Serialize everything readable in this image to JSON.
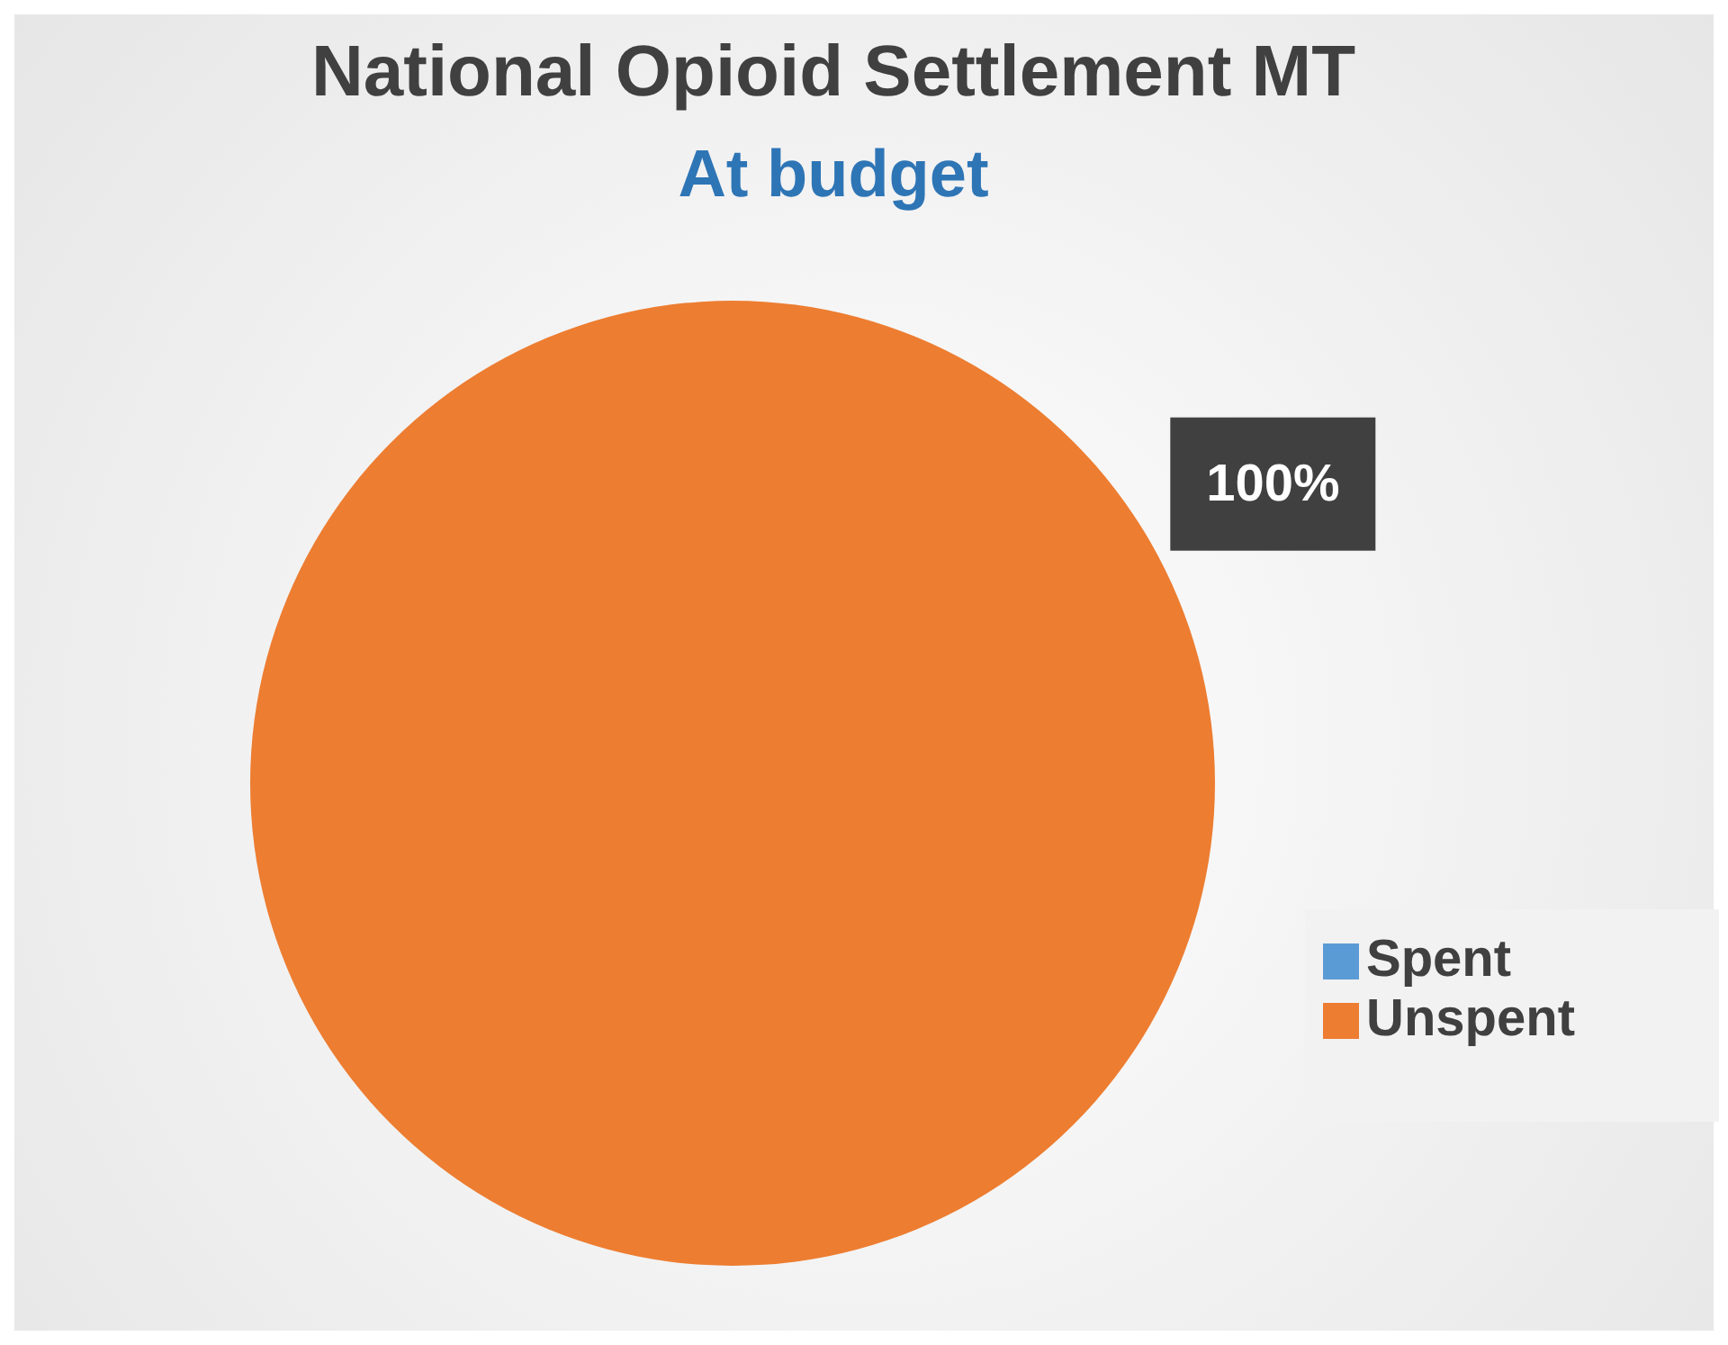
{
  "chart_data": {
    "type": "pie",
    "title": "National Opioid Settlement MT",
    "subtitle": "At budget",
    "categories": [
      "Spent",
      "Unspent"
    ],
    "values": [
      0,
      100
    ],
    "colors": [
      "#5b9bd5",
      "#ed7d31"
    ],
    "value_labels": [
      null,
      "100%"
    ],
    "legend": "right"
  }
}
